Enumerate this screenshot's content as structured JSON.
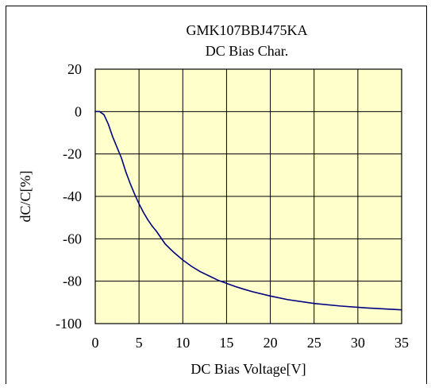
{
  "chart_data": {
    "type": "line",
    "title": "GMK107BBJ475KA",
    "subtitle": "DC Bias Char.",
    "xlabel": "DC Bias Voltage[V]",
    "ylabel": "dC/C[%]",
    "xlim": [
      0,
      35
    ],
    "ylim": [
      -100,
      20
    ],
    "xticks": [
      0,
      5,
      10,
      15,
      20,
      25,
      30,
      35
    ],
    "yticks": [
      -100,
      -80,
      -60,
      -40,
      -20,
      0,
      20
    ],
    "grid": true,
    "colors": {
      "plot_background": "#ffffcc",
      "line": "#000080",
      "grid": "#000000"
    },
    "series": [
      {
        "x": [
          0,
          0.5,
          1.0,
          1.5,
          2.0,
          2.5,
          3.0,
          3.5,
          4.0,
          4.5,
          5.0,
          5.5,
          6.0,
          6.5,
          7.0,
          7.5,
          8.0,
          9.0,
          10.0,
          11.0,
          12.0,
          13.0,
          14.0,
          15.0,
          16.0,
          17.0,
          18.0,
          20.0,
          22.0,
          25.0,
          28.0,
          31.0,
          35.0
        ],
        "y": [
          0,
          0,
          -1.5,
          -6,
          -12,
          -17,
          -22,
          -28.5,
          -34,
          -39,
          -43.5,
          -47.5,
          -51,
          -54,
          -56.5,
          -59.5,
          -62.5,
          -66.5,
          -70,
          -73,
          -75.5,
          -77.5,
          -79.5,
          -81,
          -82.5,
          -83.8,
          -85,
          -87,
          -88.7,
          -90.5,
          -91.7,
          -92.6,
          -93.5
        ]
      }
    ]
  }
}
